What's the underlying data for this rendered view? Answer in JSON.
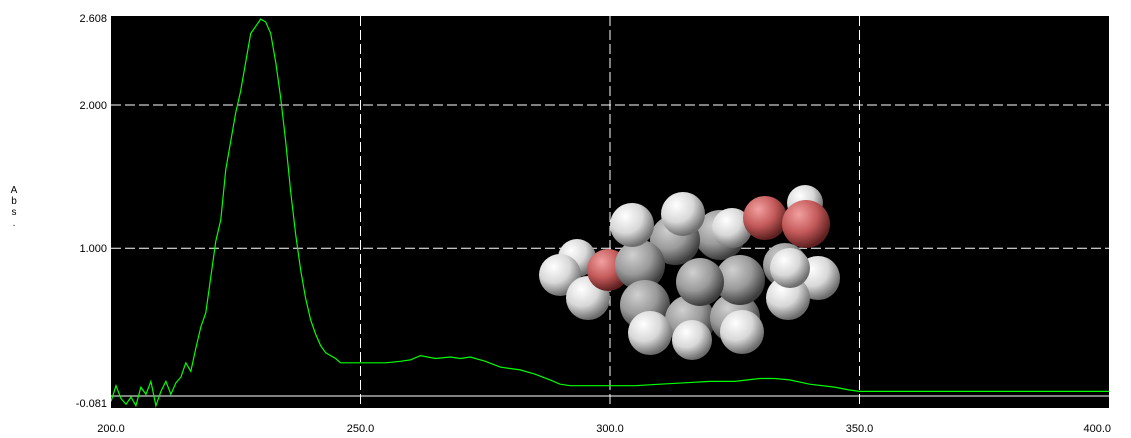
{
  "chart_data": {
    "type": "line",
    "ylabel": "Abs.",
    "xlabel": "",
    "xlim": [
      200,
      400
    ],
    "ylim": [
      -0.081,
      2.608
    ],
    "x_ticks": [
      "200.0",
      "250.0",
      "300.0",
      "350.0",
      "400.0"
    ],
    "y_ticks": [
      "2.608",
      "2.000",
      "1.000",
      "-0.081"
    ],
    "grid": true,
    "series": [
      {
        "color": "#00ff00",
        "x": [
          200,
          201,
          202,
          203,
          204,
          205,
          206,
          207,
          208,
          209,
          210,
          211,
          212,
          213,
          214,
          215,
          216,
          217,
          218,
          219,
          220,
          221,
          222,
          223,
          224,
          225,
          226,
          227,
          228,
          229,
          230,
          231,
          232,
          233,
          234,
          235,
          236,
          237,
          238,
          239,
          240,
          241,
          242,
          243,
          244,
          245,
          246,
          248,
          250,
          252,
          255,
          258,
          260,
          262,
          265,
          268,
          270,
          272,
          275,
          278,
          280,
          282,
          285,
          288,
          290,
          292,
          295,
          298,
          300,
          305,
          310,
          315,
          320,
          325,
          330,
          333,
          336,
          340,
          345,
          348,
          350,
          355,
          360,
          370,
          380,
          390,
          400
        ],
        "y": [
          -0.07,
          0.04,
          -0.05,
          -0.09,
          -0.04,
          -0.1,
          0.03,
          -0.02,
          0.07,
          -0.1,
          0.0,
          0.07,
          -0.02,
          0.06,
          0.1,
          0.2,
          0.14,
          0.3,
          0.45,
          0.55,
          0.8,
          1.05,
          1.2,
          1.55,
          1.75,
          1.95,
          2.1,
          2.3,
          2.5,
          2.55,
          2.6,
          2.58,
          2.5,
          2.3,
          2.05,
          1.75,
          1.4,
          1.1,
          0.85,
          0.65,
          0.5,
          0.4,
          0.32,
          0.27,
          0.25,
          0.23,
          0.2,
          0.2,
          0.2,
          0.2,
          0.2,
          0.21,
          0.22,
          0.25,
          0.23,
          0.24,
          0.23,
          0.24,
          0.21,
          0.17,
          0.16,
          0.15,
          0.12,
          0.08,
          0.05,
          0.04,
          0.04,
          0.04,
          0.04,
          0.04,
          0.05,
          0.06,
          0.07,
          0.07,
          0.09,
          0.09,
          0.08,
          0.05,
          0.03,
          0.01,
          0.0,
          0.0,
          0.0,
          0.0,
          0.0,
          0.0,
          0.0
        ]
      }
    ]
  }
}
